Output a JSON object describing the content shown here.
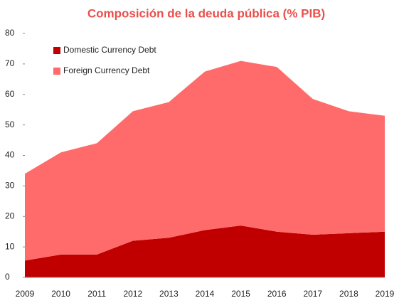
{
  "chart_data": {
    "type": "stacked_area",
    "title": "Composición de la deuda pública (% PIB)",
    "categories": [
      "2009",
      "2010",
      "2011",
      "2012",
      "2013",
      "2014",
      "2015",
      "2016",
      "2017",
      "2018",
      "2019"
    ],
    "series": [
      {
        "name": "Domestic Currency Debt",
        "color": "#c00000",
        "values": [
          5.5,
          7.5,
          7.5,
          12,
          13,
          15.5,
          17,
          15,
          14,
          14.5,
          15
        ]
      },
      {
        "name": "Foreign Currency Debt",
        "color": "#ff6b6b",
        "values": [
          28.5,
          33.5,
          36.5,
          42.5,
          44.5,
          52,
          54,
          54,
          44.5,
          40,
          38
        ]
      }
    ],
    "ylim": [
      0,
      80
    ],
    "yticks": [
      0,
      10,
      20,
      30,
      40,
      50,
      60,
      70,
      80
    ],
    "grid": false,
    "legend": "upper left"
  }
}
